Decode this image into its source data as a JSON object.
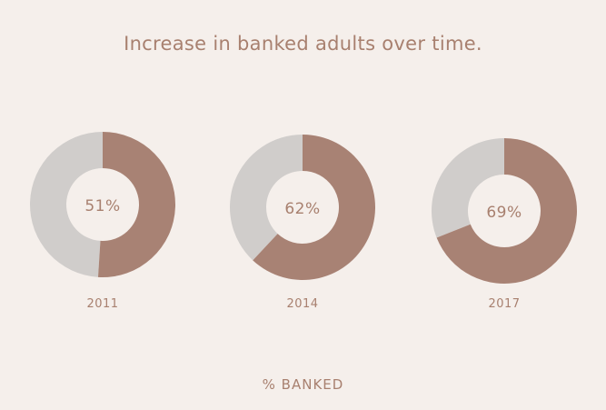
{
  "chart_data": {
    "type": "pie",
    "title": "Increase in banked adults over time.",
    "footer_label": "% BANKED",
    "colors": {
      "banked": "#a88274",
      "unbanked": "#d0cdcb",
      "text": "#a8806f",
      "background": "#f5efeb"
    },
    "series": [
      {
        "label": "2011",
        "value": 51,
        "value_label": "51%"
      },
      {
        "label": "2014",
        "value": 62,
        "value_label": "62%"
      },
      {
        "label": "2017",
        "value": 69,
        "value_label": "69%"
      }
    ]
  }
}
